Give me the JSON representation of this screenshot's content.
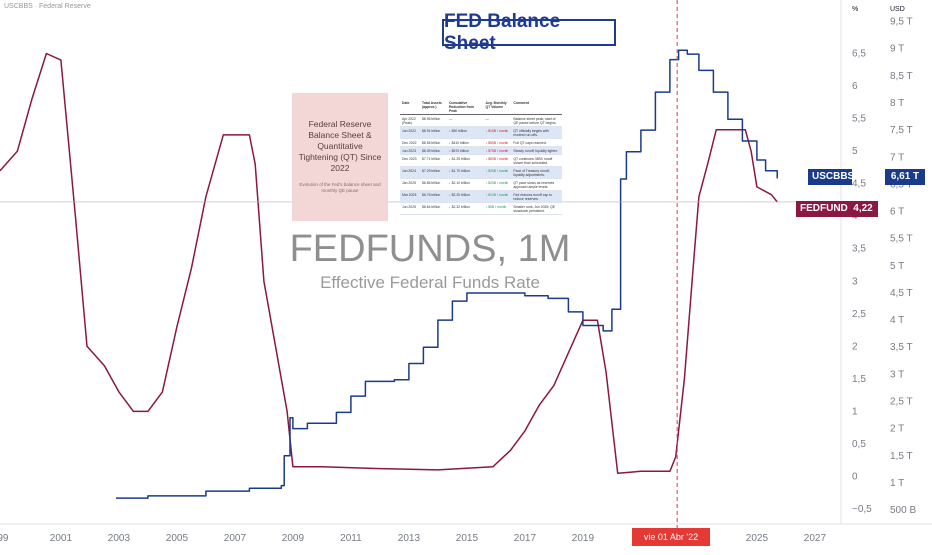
{
  "header": {
    "ticker_legend": "USCBBS · Federal Reserve",
    "title": "FED Balance Sheet"
  },
  "info_card": {
    "main": "Federal Reserve Balance Sheet & Quantitative Tightening (QT) Since 2022",
    "sub": "Evolution of the Fed's balance sheet and monthly QE pause"
  },
  "mini_table": {
    "headers": [
      "Date",
      "Total Assets (approx.)",
      "Cumulative Reduction from Peak",
      "Avg. Monthly QT Volume",
      "Comment"
    ],
    "rows": [
      [
        "Apr 2022 (Peak)",
        "$8.96 trillion",
        "—",
        "—",
        "Balance sheet peak; start of QE pause before QT begins."
      ],
      [
        "Jun 2022",
        "$8.91 trillion",
        "↓ $50 billion",
        "↓ $15B / month",
        "QT officially begins with modest run-offs."
      ],
      [
        "Dec 2022",
        "$8.55 trillion",
        "↓ $410 billion",
        "↓ $55B / month",
        "Full QT caps reached."
      ],
      [
        "Jun 2023",
        "$8.39 trillion",
        "↓ $570 billion",
        "↓ $75B / month",
        "Steady runoff; liquidity tighter."
      ],
      [
        "Dec 2023",
        "$7.71 trillion",
        "↓ $1.25 trillion",
        "↓ $60B / month",
        "QT continues; MBS runoff slower than scheduled."
      ],
      [
        "Jun 2024",
        "$7.29 trillion",
        "↓ $1.70 trillion",
        "↓ $25B / month",
        "Pace of Treasury runoff; liquidity adjustments."
      ],
      [
        "Jan 2025",
        "$6.85 trillion",
        "↓ $2.10 trillion",
        "↓ $25B / month",
        "QT pace slows as reserves approach ample levels."
      ],
      [
        "Mar 2025",
        "$6.76 trillion",
        "↓ $2.20 trillion",
        "↓ $10B / month",
        "Fed reduces runoff cap to reduce reserves."
      ],
      [
        "Jun 2025",
        "$6.64 trillion",
        "↓ $2.32 trillion",
        "↓ $5B / month",
        "Smaller runs; Jun 2025; QE slowdown persistent."
      ]
    ],
    "col3_colors": [
      "",
      "red",
      "red",
      "red",
      "red",
      "green",
      "green",
      "green",
      "green"
    ]
  },
  "watermark": {
    "symbol": "FEDFUNDS, 1M",
    "description": "Effective Federal Funds Rate"
  },
  "badges": {
    "usc_label": "USCBBS",
    "usc_value": "6,61 T",
    "fed_label": "FEDFUNDS",
    "fed_value": "4,22"
  },
  "cursor_label": "vie 01 Abr '22",
  "colors": {
    "balance_sheet": "#1a3a8a",
    "fed_funds": "#8b1742",
    "cursor": "#e53935",
    "title": "#1f3a93"
  },
  "chart_data": {
    "type": "line",
    "x_ticks": [
      "99",
      "2001",
      "2003",
      "2005",
      "2007",
      "2009",
      "2011",
      "2013",
      "2015",
      "2017",
      "2019",
      "20",
      "2023",
      "2025",
      "2027"
    ],
    "x_tick_years": [
      1999,
      2001,
      2003,
      2005,
      2007,
      2009,
      2011,
      2013,
      2015,
      2017,
      2019,
      2021,
      2023,
      2025,
      2027
    ],
    "xlim": [
      1998.9,
      2027.9
    ],
    "percent_axis": {
      "unit_label": "%",
      "ticks": [
        "6,5",
        "6",
        "5,5",
        "5",
        "4,5",
        "4",
        "3,5",
        "3",
        "2,5",
        "2",
        "1,5",
        "1",
        "0,5",
        "0",
        "−0,5"
      ],
      "tick_values": [
        6.5,
        6,
        5.5,
        5,
        4.5,
        4,
        3.5,
        3,
        2.5,
        2,
        1.5,
        1,
        0.5,
        0,
        -0.5
      ],
      "ylim": [
        -0.7,
        7.2
      ]
    },
    "usd_axis": {
      "unit_label": "USD",
      "ticks": [
        "9,5 T",
        "9 T",
        "8,5 T",
        "8 T",
        "7,5 T",
        "7 T",
        "6,5 T",
        "6 T",
        "5,5 T",
        "5 T",
        "4,5 T",
        "4 T",
        "3,5 T",
        "3 T",
        "2,5 T",
        "2 T",
        "1,5 T",
        "1 T",
        "500 B"
      ],
      "tick_values": [
        9.5,
        9,
        8.5,
        8,
        7.5,
        7,
        6.5,
        6,
        5.5,
        5,
        4.5,
        4,
        3.5,
        3,
        2.5,
        2,
        1.5,
        1,
        0.5
      ],
      "ylim": [
        0.28,
        9.75
      ]
    },
    "series": [
      {
        "name": "FEDFUNDS",
        "axis": "percent",
        "x": [
          1998.9,
          1999.5,
          2000.0,
          2000.5,
          2001.0,
          2001.5,
          2001.9,
          2002.5,
          2003.0,
          2003.5,
          2004.0,
          2004.5,
          2005.0,
          2005.5,
          2006.0,
          2006.6,
          2007.5,
          2007.7,
          2008.0,
          2008.4,
          2008.8,
          2009.0,
          2010.0,
          2012.0,
          2014.0,
          2015.9,
          2016.5,
          2017.0,
          2017.5,
          2018.0,
          2018.5,
          2019.0,
          2019.5,
          2019.8,
          2020.2,
          2021.0,
          2022.0,
          2022.2,
          2022.5,
          2022.8,
          2023.0,
          2023.3,
          2023.6,
          2024.6,
          2024.8,
          2025.0,
          2025.5,
          2025.7
        ],
        "y": [
          4.7,
          5.0,
          5.8,
          6.5,
          6.4,
          4.0,
          2.0,
          1.7,
          1.3,
          1.0,
          1.0,
          1.3,
          2.3,
          3.2,
          4.3,
          5.25,
          5.25,
          4.8,
          3.0,
          2.0,
          1.0,
          0.15,
          0.15,
          0.12,
          0.1,
          0.15,
          0.4,
          0.7,
          1.1,
          1.4,
          1.9,
          2.4,
          2.4,
          1.6,
          0.05,
          0.08,
          0.08,
          0.3,
          1.5,
          3.2,
          4.3,
          4.8,
          5.33,
          5.33,
          5.0,
          4.45,
          4.33,
          4.22
        ]
      },
      {
        "name": "USCBBS",
        "axis": "usd",
        "x": [
          2002.9,
          2004.0,
          2006.0,
          2007.5,
          2008.6,
          2008.7,
          2008.9,
          2009.0,
          2009.5,
          2010.5,
          2011.0,
          2011.5,
          2012.5,
          2013.0,
          2013.5,
          2014.0,
          2014.5,
          2015.0,
          2016.0,
          2017.0,
          2017.8,
          2018.5,
          2019.0,
          2019.7,
          2020.0,
          2020.3,
          2020.5,
          2021.0,
          2021.5,
          2022.0,
          2022.3,
          2022.6,
          2023.0,
          2023.5,
          2024.0,
          2024.5,
          2025.0,
          2025.3,
          2025.7
        ],
        "y": [
          0.72,
          0.76,
          0.85,
          0.9,
          0.95,
          1.5,
          2.2,
          2.0,
          2.1,
          2.3,
          2.6,
          2.87,
          2.9,
          3.2,
          3.5,
          4.0,
          4.35,
          4.5,
          4.5,
          4.45,
          4.4,
          4.15,
          3.9,
          3.8,
          4.2,
          6.6,
          7.1,
          7.5,
          8.2,
          8.8,
          8.97,
          8.9,
          8.6,
          8.2,
          7.7,
          7.3,
          6.95,
          6.75,
          6.61
        ]
      }
    ],
    "last_values": {
      "USCBBS": "6,61 T",
      "FEDFUNDS": "4,22"
    },
    "crosshair": {
      "x": 2022.25,
      "price_level_percent": 4.22
    },
    "grid": false,
    "legend": "top-left"
  }
}
